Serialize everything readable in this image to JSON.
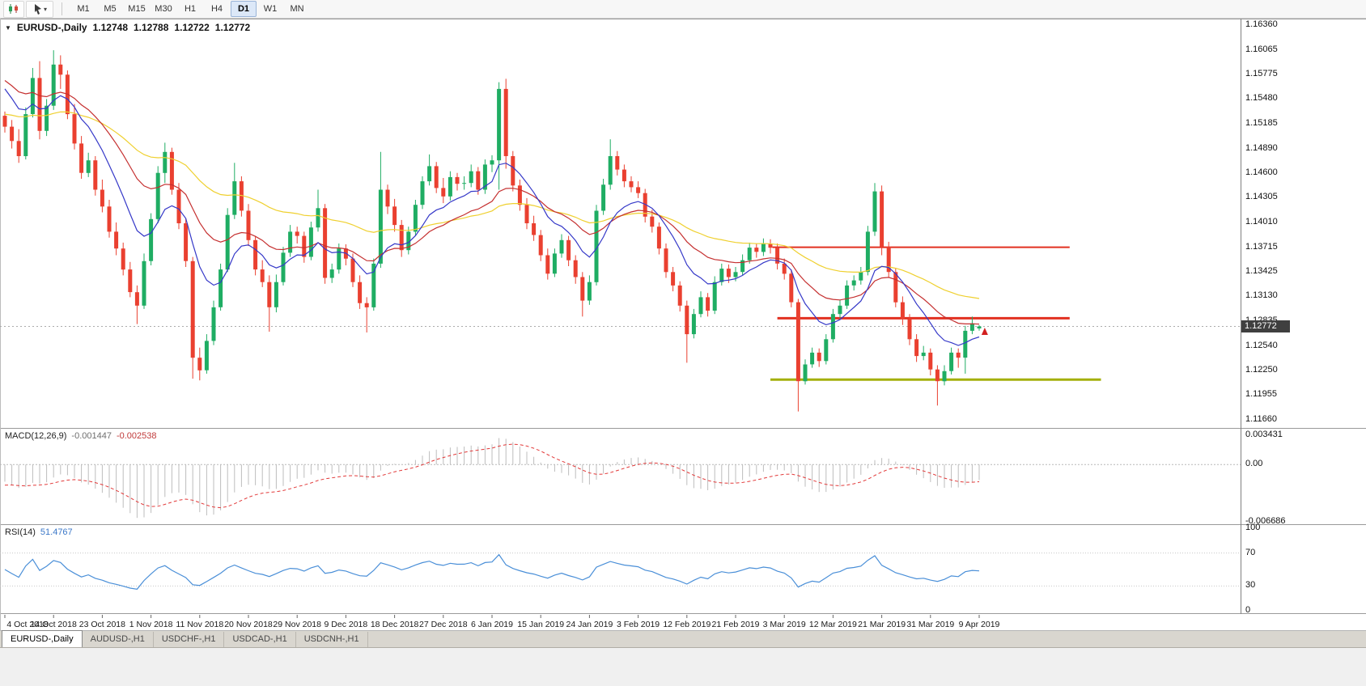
{
  "toolbar": {
    "timeframes": [
      "M1",
      "M5",
      "M15",
      "M30",
      "H1",
      "H4",
      "D1",
      "W1",
      "MN"
    ],
    "active_timeframe": "D1",
    "caret": "▾"
  },
  "chart_header": {
    "marker": "▼",
    "symbol": "EURUSD-,Daily",
    "open": "1.12748",
    "high": "1.12788",
    "low": "1.12722",
    "close": "1.12772"
  },
  "price_axis": {
    "labels": [
      "1.16360",
      "1.16065",
      "1.15775",
      "1.15480",
      "1.15185",
      "1.14890",
      "1.14600",
      "1.14305",
      "1.14010",
      "1.13715",
      "1.13425",
      "1.13130",
      "1.12835",
      "1.12540",
      "1.12250",
      "1.11955",
      "1.11660"
    ],
    "current": "1.12772"
  },
  "indicators": {
    "macd": {
      "title": "MACD(12,26,9)",
      "value_main": "-0.001447",
      "value_signal": "-0.002538",
      "axis_labels": [
        "0.003431",
        "0.00",
        "-0.006686"
      ]
    },
    "rsi": {
      "title": "RSI(14)",
      "value": "51.4767",
      "axis_labels": [
        "100",
        "70",
        "30",
        "0"
      ],
      "levels": [
        70,
        30
      ]
    }
  },
  "date_axis": {
    "labels": [
      [
        "4 Oct 2018",
        0
      ],
      [
        "14 Oct 2018",
        7
      ],
      [
        "23 Oct 2018",
        14
      ],
      [
        "1 Nov 2018",
        21
      ],
      [
        "11 Nov 2018",
        28
      ],
      [
        "20 Nov 2018",
        35
      ],
      [
        "29 Nov 2018",
        42
      ],
      [
        "9 Dec 2018",
        49
      ],
      [
        "18 Dec 2018",
        56
      ],
      [
        "27 Dec 2018",
        63
      ],
      [
        "6 Jan 2019",
        70
      ],
      [
        "15 Jan 2019",
        77
      ],
      [
        "24 Jan 2019",
        84
      ],
      [
        "3 Feb 2019",
        91
      ],
      [
        "12 Feb 2019",
        98
      ],
      [
        "21 Feb 2019",
        105
      ],
      [
        "3 Mar 2019",
        112
      ],
      [
        "12 Mar 2019",
        119
      ],
      [
        "21 Mar 2019",
        126
      ],
      [
        "31 Mar 2019",
        133
      ],
      [
        "9 Apr 2019",
        140
      ]
    ]
  },
  "tabs": [
    {
      "label": "EURUSD-,Daily",
      "active": true
    },
    {
      "label": "AUDUSD-,H1",
      "active": false
    },
    {
      "label": "USDCHF-,H1",
      "active": false
    },
    {
      "label": "USDCAD-,H1",
      "active": false
    },
    {
      "label": "USDCNH-,H1",
      "active": false
    }
  ],
  "chart_data": {
    "type": "candlestick",
    "symbol": "EURUSD",
    "timeframe": "Daily",
    "y_range": [
      1.115637,
      1.164274
    ],
    "macd_range": [
      -0.006967,
      0.004087
    ],
    "colors": {
      "bull": "#1fad63",
      "bear": "#ea4030",
      "ma_fast": "#3538c8",
      "ma_mid": "#c53030",
      "ma_slow": "#efd02f",
      "macd_hist": "#bdbdbd",
      "macd_signal": "#e23939",
      "rsi": "#4a8fd8",
      "current_line": "#ababab",
      "tag_bg": "#3f3f3f"
    },
    "moving_averages": [
      {
        "name": "ma-slow-yellow",
        "period": 50,
        "seed": 1.153,
        "color": "#efd02f"
      },
      {
        "name": "ma-mid-red",
        "period": 22,
        "seed": 1.157,
        "color": "#c53030"
      },
      {
        "name": "ma-fast-blue",
        "period": 10,
        "seed": 1.156,
        "color": "#3538c8"
      }
    ],
    "macd": {
      "fast": 12,
      "slow": 26,
      "signal": 9,
      "seed_fast": 1.156,
      "seed_slow": 1.158
    },
    "rsi_period": 14,
    "levels": [
      {
        "name": "resistance-line-upper",
        "price": 1.13715,
        "from_bar": 110.3,
        "to_bar": 153,
        "color": "#e23020",
        "width": 2
      },
      {
        "name": "resistance-line-lower",
        "price": 1.1287,
        "from_bar": 111,
        "to_bar": 153,
        "color": "#e23020",
        "width": 3
      },
      {
        "name": "support-line-olive",
        "price": 1.1214,
        "from_bar": 110,
        "to_bar": 157.5,
        "color": "#a4af0a",
        "width": 3
      }
    ],
    "marker": {
      "name": "buy-arrow-marker",
      "bar": 140.8,
      "price": 1.127,
      "color": "#d22020"
    },
    "candles": [
      [
        1.1528,
        1.1533,
        1.1508,
        1.1515
      ],
      [
        1.1515,
        1.1523,
        1.1489,
        1.1498
      ],
      [
        1.1498,
        1.1512,
        1.1472,
        1.148
      ],
      [
        1.148,
        1.1538,
        1.1476,
        1.153
      ],
      [
        1.153,
        1.1585,
        1.1526,
        1.1573
      ],
      [
        1.1573,
        1.1593,
        1.15,
        1.151
      ],
      [
        1.151,
        1.1548,
        1.1504,
        1.154
      ],
      [
        1.154,
        1.1606,
        1.1535,
        1.1589
      ],
      [
        1.1589,
        1.16,
        1.156,
        1.1577
      ],
      [
        1.1577,
        1.1582,
        1.1524,
        1.153
      ],
      [
        1.153,
        1.1542,
        1.1488,
        1.1495
      ],
      [
        1.1495,
        1.1504,
        1.1453,
        1.146
      ],
      [
        1.146,
        1.1484,
        1.1455,
        1.1475
      ],
      [
        1.1475,
        1.148,
        1.1433,
        1.144
      ],
      [
        1.144,
        1.1452,
        1.1413,
        1.142
      ],
      [
        1.142,
        1.1428,
        1.1383,
        1.139
      ],
      [
        1.139,
        1.1401,
        1.1362,
        1.137
      ],
      [
        1.137,
        1.1377,
        1.1338,
        1.1345
      ],
      [
        1.1345,
        1.1354,
        1.1312,
        1.1318
      ],
      [
        1.1318,
        1.1326,
        1.128,
        1.1302
      ],
      [
        1.1302,
        1.1364,
        1.1298,
        1.1355
      ],
      [
        1.1355,
        1.1412,
        1.135,
        1.1405
      ],
      [
        1.1405,
        1.1468,
        1.14,
        1.146
      ],
      [
        1.146,
        1.1496,
        1.1448,
        1.1485
      ],
      [
        1.1485,
        1.149,
        1.1434,
        1.144
      ],
      [
        1.144,
        1.1448,
        1.1393,
        1.14
      ],
      [
        1.14,
        1.1406,
        1.1348,
        1.1355
      ],
      [
        1.1355,
        1.136,
        1.1215,
        1.124
      ],
      [
        1.124,
        1.1252,
        1.1213,
        1.1225
      ],
      [
        1.1225,
        1.1268,
        1.1221,
        1.126
      ],
      [
        1.126,
        1.1308,
        1.1255,
        1.13
      ],
      [
        1.13,
        1.1352,
        1.1296,
        1.1345
      ],
      [
        1.1345,
        1.1418,
        1.1342,
        1.141
      ],
      [
        1.141,
        1.1472,
        1.1405,
        1.145
      ],
      [
        1.145,
        1.1456,
        1.1408,
        1.1415
      ],
      [
        1.1415,
        1.1423,
        1.1373,
        1.138
      ],
      [
        1.138,
        1.1385,
        1.1338,
        1.1345
      ],
      [
        1.1345,
        1.1356,
        1.1324,
        1.133
      ],
      [
        1.133,
        1.1338,
        1.1271,
        1.13
      ],
      [
        1.13,
        1.1339,
        1.1294,
        1.133
      ],
      [
        1.133,
        1.1372,
        1.1326,
        1.1365
      ],
      [
        1.1365,
        1.1398,
        1.136,
        1.139
      ],
      [
        1.139,
        1.1396,
        1.1376,
        1.1385
      ],
      [
        1.1385,
        1.139,
        1.1353,
        1.136
      ],
      [
        1.136,
        1.1402,
        1.1356,
        1.1395
      ],
      [
        1.1395,
        1.144,
        1.139,
        1.1418
      ],
      [
        1.1418,
        1.1423,
        1.1328,
        1.1335
      ],
      [
        1.1335,
        1.1352,
        1.1329,
        1.1345
      ],
      [
        1.1345,
        1.1376,
        1.134,
        1.137
      ],
      [
        1.137,
        1.1375,
        1.135,
        1.1358
      ],
      [
        1.1358,
        1.1364,
        1.1324,
        1.133
      ],
      [
        1.133,
        1.1338,
        1.1298,
        1.1305
      ],
      [
        1.1305,
        1.1312,
        1.127,
        1.13
      ],
      [
        1.13,
        1.1358,
        1.1296,
        1.1352
      ],
      [
        1.1352,
        1.1485,
        1.1347,
        1.144
      ],
      [
        1.144,
        1.1446,
        1.1411,
        1.142
      ],
      [
        1.142,
        1.1429,
        1.139,
        1.1398
      ],
      [
        1.1398,
        1.1404,
        1.136,
        1.1368
      ],
      [
        1.1368,
        1.1396,
        1.1363,
        1.139
      ],
      [
        1.139,
        1.1428,
        1.1385,
        1.1422
      ],
      [
        1.1422,
        1.1456,
        1.1417,
        1.145
      ],
      [
        1.145,
        1.1482,
        1.1445,
        1.1468
      ],
      [
        1.1468,
        1.1473,
        1.1436,
        1.1442
      ],
      [
        1.1442,
        1.1454,
        1.1424,
        1.1432
      ],
      [
        1.1432,
        1.1462,
        1.1427,
        1.1455
      ],
      [
        1.1455,
        1.146,
        1.1439,
        1.1447
      ],
      [
        1.1447,
        1.1456,
        1.144,
        1.1448
      ],
      [
        1.1448,
        1.147,
        1.1443,
        1.1462
      ],
      [
        1.1462,
        1.1467,
        1.1434,
        1.144
      ],
      [
        1.144,
        1.1476,
        1.1435,
        1.147
      ],
      [
        1.147,
        1.1481,
        1.1461,
        1.1475
      ],
      [
        1.1475,
        1.1568,
        1.144,
        1.156
      ],
      [
        1.156,
        1.1572,
        1.1465,
        1.148
      ],
      [
        1.148,
        1.1486,
        1.1438,
        1.1445
      ],
      [
        1.1445,
        1.1452,
        1.1415,
        1.1422
      ],
      [
        1.1422,
        1.143,
        1.1393,
        1.14
      ],
      [
        1.14,
        1.1409,
        1.1379,
        1.1386
      ],
      [
        1.1386,
        1.1392,
        1.1355,
        1.1362
      ],
      [
        1.1362,
        1.137,
        1.1333,
        1.134
      ],
      [
        1.134,
        1.137,
        1.1336,
        1.1364
      ],
      [
        1.1364,
        1.1387,
        1.1359,
        1.138
      ],
      [
        1.138,
        1.1385,
        1.1349,
        1.1356
      ],
      [
        1.1356,
        1.1362,
        1.1328,
        1.1336
      ],
      [
        1.1336,
        1.1342,
        1.1289,
        1.1308
      ],
      [
        1.1308,
        1.1338,
        1.1303,
        1.133
      ],
      [
        1.133,
        1.1422,
        1.1326,
        1.1415
      ],
      [
        1.1415,
        1.1453,
        1.141,
        1.1446
      ],
      [
        1.1446,
        1.15,
        1.144,
        1.148
      ],
      [
        1.148,
        1.1486,
        1.1457,
        1.1464
      ],
      [
        1.1464,
        1.147,
        1.1443,
        1.145
      ],
      [
        1.145,
        1.1456,
        1.1437,
        1.1443
      ],
      [
        1.1443,
        1.145,
        1.143,
        1.1436
      ],
      [
        1.1436,
        1.1441,
        1.1401,
        1.1408
      ],
      [
        1.1408,
        1.1416,
        1.1389,
        1.1396
      ],
      [
        1.1396,
        1.1401,
        1.1363,
        1.137
      ],
      [
        1.137,
        1.1376,
        1.1335,
        1.1342
      ],
      [
        1.1342,
        1.1348,
        1.1319,
        1.1326
      ],
      [
        1.1326,
        1.1331,
        1.1295,
        1.1302
      ],
      [
        1.1302,
        1.1308,
        1.1234,
        1.1268
      ],
      [
        1.1268,
        1.1298,
        1.1263,
        1.1292
      ],
      [
        1.1292,
        1.1319,
        1.1288,
        1.1312
      ],
      [
        1.1312,
        1.1317,
        1.1289,
        1.1296
      ],
      [
        1.1296,
        1.1337,
        1.1292,
        1.133
      ],
      [
        1.133,
        1.1352,
        1.1326,
        1.1346
      ],
      [
        1.1346,
        1.1351,
        1.1329,
        1.1336
      ],
      [
        1.1336,
        1.1348,
        1.1331,
        1.1342
      ],
      [
        1.1342,
        1.1363,
        1.1338,
        1.1356
      ],
      [
        1.1356,
        1.1377,
        1.1352,
        1.1371
      ],
      [
        1.1371,
        1.1376,
        1.1359,
        1.1366
      ],
      [
        1.1366,
        1.1382,
        1.1361,
        1.1376
      ],
      [
        1.1376,
        1.1381,
        1.1364,
        1.1371
      ],
      [
        1.1371,
        1.1376,
        1.1345,
        1.1352
      ],
      [
        1.1352,
        1.1358,
        1.1333,
        1.134
      ],
      [
        1.134,
        1.1345,
        1.13,
        1.1306
      ],
      [
        1.1306,
        1.131,
        1.1176,
        1.1212
      ],
      [
        1.1212,
        1.1238,
        1.1208,
        1.1232
      ],
      [
        1.1232,
        1.1252,
        1.1228,
        1.1246
      ],
      [
        1.1246,
        1.1251,
        1.1229,
        1.1236
      ],
      [
        1.1236,
        1.1268,
        1.1232,
        1.1262
      ],
      [
        1.1262,
        1.1298,
        1.1258,
        1.1292
      ],
      [
        1.1292,
        1.1309,
        1.1287,
        1.1302
      ],
      [
        1.1302,
        1.1332,
        1.1298,
        1.1326
      ],
      [
        1.1326,
        1.1338,
        1.132,
        1.1332
      ],
      [
        1.1332,
        1.1348,
        1.1327,
        1.1342
      ],
      [
        1.1342,
        1.1397,
        1.1338,
        1.139
      ],
      [
        1.139,
        1.1448,
        1.1385,
        1.1438
      ],
      [
        1.1438,
        1.1445,
        1.1362,
        1.1372
      ],
      [
        1.1372,
        1.1378,
        1.1335,
        1.1342
      ],
      [
        1.1342,
        1.1347,
        1.13,
        1.1306
      ],
      [
        1.1306,
        1.1313,
        1.1279,
        1.1286
      ],
      [
        1.1286,
        1.1292,
        1.1255,
        1.1262
      ],
      [
        1.1262,
        1.1268,
        1.1235,
        1.1242
      ],
      [
        1.1242,
        1.1254,
        1.1237,
        1.1246
      ],
      [
        1.1246,
        1.1251,
        1.1219,
        1.1226
      ],
      [
        1.1226,
        1.1231,
        1.1183,
        1.1212
      ],
      [
        1.1212,
        1.1231,
        1.1207,
        1.1224
      ],
      [
        1.1224,
        1.1252,
        1.122,
        1.1246
      ],
      [
        1.1246,
        1.1251,
        1.1228,
        1.124
      ],
      [
        1.124,
        1.1278,
        1.1221,
        1.1272
      ],
      [
        1.1272,
        1.1289,
        1.1268,
        1.1281
      ],
      [
        1.12748,
        1.12788,
        1.12722,
        1.12772
      ]
    ]
  }
}
